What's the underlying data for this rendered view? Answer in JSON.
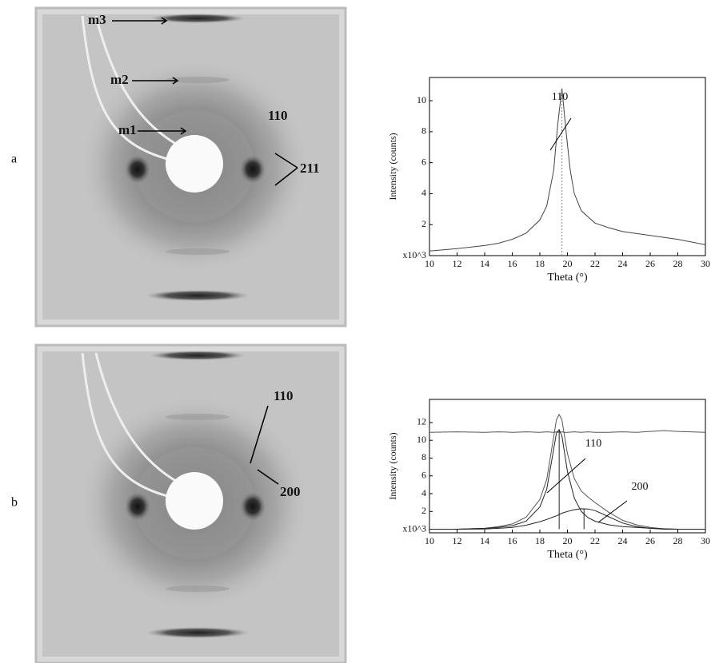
{
  "panels": [
    {
      "label": "a",
      "image_labels": [
        "m3",
        "m2",
        "m1",
        "110",
        "211"
      ]
    },
    {
      "label": "b",
      "image_labels": [
        "110",
        "200"
      ]
    }
  ],
  "chart_data": [
    {
      "type": "line",
      "x": [
        10,
        12,
        14,
        15,
        16,
        17,
        18,
        18.5,
        19,
        19.3,
        19.6,
        19.9,
        20.2,
        20.5,
        21,
        22,
        23,
        24,
        26,
        28,
        30
      ],
      "series": [
        {
          "color": "#444444",
          "values": [
            0.3,
            0.45,
            0.65,
            0.8,
            1.05,
            1.45,
            2.3,
            3.2,
            5.5,
            8.5,
            10.8,
            8.0,
            5.5,
            4.0,
            2.9,
            2.1,
            1.8,
            1.55,
            1.3,
            1.05,
            0.7
          ]
        }
      ],
      "peak_markers": {
        "x": [
          19.6
        ],
        "heights": [
          10.8
        ]
      },
      "annotations": [
        "110"
      ],
      "xlabel": "Theta (°)",
      "ylabel": "Intensity (counts)",
      "xlim": [
        10,
        30
      ],
      "xticks": [
        10,
        12,
        14,
        16,
        18,
        20,
        22,
        24,
        26,
        28,
        30
      ],
      "ylim": [
        0,
        11.5
      ],
      "yticks": [
        {
          "value": 0,
          "label": "x10^3"
        },
        2,
        4,
        6,
        8,
        10
      ]
    },
    {
      "type": "line",
      "x": [
        10,
        12,
        14,
        15,
        16,
        17,
        18,
        18.5,
        19,
        19.2,
        19.4,
        19.6,
        19.8,
        20,
        20.5,
        21,
        21.5,
        22,
        23,
        24,
        25,
        26,
        27,
        28,
        30
      ],
      "series": [
        {
          "color": "#555555",
          "values": [
            10.9,
            10.95,
            10.9,
            10.95,
            10.9,
            10.95,
            10.9,
            10.95,
            10.9,
            10.95,
            10.9,
            10.95,
            10.9,
            10.9,
            10.95,
            10.9,
            10.95,
            10.9,
            10.9,
            10.95,
            10.9,
            11.0,
            11.1,
            11.0,
            10.9
          ]
        },
        {
          "color": "#555555",
          "values": [
            0,
            0,
            0.1,
            0.3,
            0.6,
            1.35,
            3.35,
            5.6,
            10.4,
            12.3,
            12.9,
            12.3,
            10.4,
            8.5,
            5.7,
            4.3,
            3.6,
            3.0,
            1.9,
            1.0,
            0.5,
            0.2,
            0.05,
            0,
            0
          ]
        },
        {
          "color": "#222222",
          "values": [
            0,
            0,
            0.1,
            0.2,
            0.4,
            0.9,
            2.5,
            4.5,
            9,
            10.8,
            11.2,
            10.5,
            8.5,
            6.5,
            3.5,
            2,
            1.3,
            0.9,
            0.5,
            0.3,
            0.2,
            0.1,
            0.05,
            0,
            0
          ]
        },
        {
          "color": "#222222",
          "values": [
            0,
            0,
            0.02,
            0.1,
            0.2,
            0.45,
            0.85,
            1.1,
            1.4,
            1.5,
            1.65,
            1.8,
            1.9,
            2.0,
            2.2,
            2.3,
            2.28,
            2.1,
            1.4,
            0.7,
            0.3,
            0.1,
            0,
            0,
            0
          ]
        }
      ],
      "peak_markers": {
        "x": [
          19.4,
          21.2
        ],
        "heights": [
          11.2,
          2.3
        ]
      },
      "annotations": [
        "110",
        "200"
      ],
      "xlabel": "Theta (°)",
      "ylabel": "Intensity (counts)",
      "xlim": [
        10,
        30
      ],
      "xticks": [
        10,
        12,
        14,
        16,
        18,
        20,
        22,
        24,
        26,
        28,
        30
      ],
      "ylim": [
        -0.4,
        14.6
      ],
      "yticks": [
        {
          "value": 0,
          "label": "x10^3"
        },
        2,
        4,
        6,
        8,
        10,
        12
      ]
    }
  ]
}
